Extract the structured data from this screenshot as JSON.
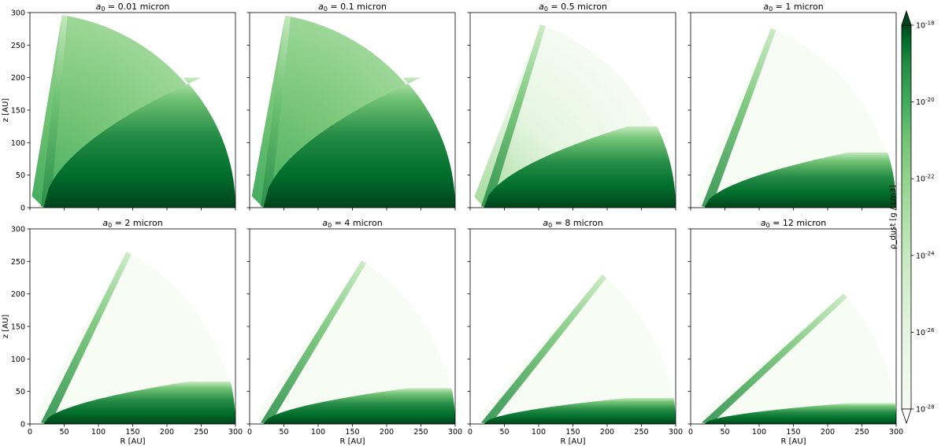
{
  "figure": {
    "colorbar": {
      "label": "ρ_dust [g / cm3]",
      "ticks": [
        "10^-18",
        "10^-20",
        "10^-22",
        "10^-24",
        "10^-26",
        "10^-28"
      ],
      "tick_exponents": [
        -18,
        -20,
        -22,
        -24,
        -26,
        -28
      ],
      "range_log10": [
        -28,
        -18
      ],
      "extend": "both",
      "colormap": "Greens",
      "color_light": "#f7fcf5",
      "color_dark": "#00441b"
    }
  },
  "chart_data": [
    {
      "type": "heatmap",
      "title_prefix": "a",
      "title_sub": "0",
      "title_value": " = 0.01 micron",
      "xlabel": "",
      "ylabel": "z [AU]",
      "xlim": [
        0,
        300
      ],
      "ylim": [
        0,
        300
      ],
      "xticks": [
        "0",
        "50",
        "100",
        "150",
        "200",
        "250",
        "300"
      ],
      "yticks": [
        "0",
        "50",
        "100",
        "150",
        "200",
        "250",
        "300"
      ],
      "outer_radius_au": 300,
      "inner_edge_au": 20,
      "outflow_cone_angle_deg": 81,
      "disk_surface_height_au": 200,
      "disk_surface_at_r_au": 250,
      "cavity_density": "high",
      "disk_density_scale_au": 200
    },
    {
      "type": "heatmap",
      "title_prefix": "a",
      "title_sub": "0",
      "title_value": " = 0.1 micron",
      "xlabel": "",
      "ylabel": "",
      "xlim": [
        0,
        300
      ],
      "ylim": [
        0,
        300
      ],
      "xticks": [
        "0",
        "50",
        "100",
        "150",
        "200",
        "250",
        "300"
      ],
      "yticks": [
        "0",
        "50",
        "100",
        "150",
        "200",
        "250",
        "300"
      ],
      "outer_radius_au": 300,
      "inner_edge_au": 20,
      "outflow_cone_angle_deg": 80,
      "disk_surface_height_au": 200,
      "disk_surface_at_r_au": 250,
      "cavity_density": "high",
      "disk_density_scale_au": 170
    },
    {
      "type": "heatmap",
      "title_prefix": "a",
      "title_sub": "0",
      "title_value": " = 0.5 micron",
      "xlabel": "",
      "ylabel": "",
      "xlim": [
        0,
        300
      ],
      "ylim": [
        0,
        300
      ],
      "xticks": [
        "0",
        "50",
        "100",
        "150",
        "200",
        "250",
        "300"
      ],
      "yticks": [
        "0",
        "50",
        "100",
        "150",
        "200",
        "250",
        "300"
      ],
      "outer_radius_au": 300,
      "inner_edge_au": 20,
      "outflow_cone_angle_deg": 70,
      "disk_surface_height_au": 125,
      "disk_surface_at_r_au": 230,
      "cavity_density": "medium",
      "disk_density_scale_au": 55
    },
    {
      "type": "heatmap",
      "title_prefix": "a",
      "title_sub": "0",
      "title_value": " = 1 micron",
      "xlabel": "",
      "ylabel": "",
      "xlim": [
        0,
        300
      ],
      "ylim": [
        0,
        300
      ],
      "xticks": [
        "0",
        "50",
        "100",
        "150",
        "200",
        "250",
        "300"
      ],
      "yticks": [
        "0",
        "50",
        "100",
        "150",
        "200",
        "250",
        "300"
      ],
      "outer_radius_au": 300,
      "inner_edge_au": 20,
      "outflow_cone_angle_deg": 67,
      "disk_surface_height_au": 85,
      "disk_surface_at_r_au": 230,
      "cavity_density": "low",
      "disk_density_scale_au": 35
    },
    {
      "type": "heatmap",
      "title_prefix": "a",
      "title_sub": "0",
      "title_value": " = 2 micron",
      "xlabel": "R [AU]",
      "ylabel": "z [AU]",
      "xlim": [
        0,
        300
      ],
      "ylim": [
        0,
        300
      ],
      "xticks": [
        "0",
        "50",
        "100",
        "150",
        "200",
        "250",
        "300"
      ],
      "yticks": [
        "0",
        "50",
        "100",
        "150",
        "200",
        "250",
        "300"
      ],
      "outer_radius_au": 300,
      "inner_edge_au": 20,
      "outflow_cone_angle_deg": 62,
      "disk_surface_height_au": 65,
      "disk_surface_at_r_au": 230,
      "cavity_density": "low",
      "disk_density_scale_au": 28
    },
    {
      "type": "heatmap",
      "title_prefix": "a",
      "title_sub": "0",
      "title_value": " = 4 micron",
      "xlabel": "R [AU]",
      "ylabel": "",
      "xlim": [
        0,
        300
      ],
      "ylim": [
        0,
        300
      ],
      "xticks": [
        "0",
        "50",
        "100",
        "150",
        "200",
        "250",
        "300"
      ],
      "yticks": [
        "0",
        "50",
        "100",
        "150",
        "200",
        "250",
        "300"
      ],
      "outer_radius_au": 300,
      "inner_edge_au": 20,
      "outflow_cone_angle_deg": 57,
      "disk_surface_height_au": 55,
      "disk_surface_at_r_au": 230,
      "cavity_density": "low",
      "disk_density_scale_au": 24
    },
    {
      "type": "heatmap",
      "title_prefix": "a",
      "title_sub": "0",
      "title_value": " = 8 micron",
      "xlabel": "R [AU]",
      "ylabel": "",
      "xlim": [
        0,
        300
      ],
      "ylim": [
        0,
        300
      ],
      "xticks": [
        "0",
        "50",
        "100",
        "150",
        "200",
        "250",
        "300"
      ],
      "yticks": [
        "0",
        "50",
        "100",
        "150",
        "200",
        "250",
        "300"
      ],
      "outer_radius_au": 300,
      "inner_edge_au": 20,
      "outflow_cone_angle_deg": 50,
      "disk_surface_height_au": 40,
      "disk_surface_at_r_au": 230,
      "cavity_density": "low",
      "disk_density_scale_au": 20
    },
    {
      "type": "heatmap",
      "title_prefix": "a",
      "title_sub": "0",
      "title_value": " = 12 micron",
      "xlabel": "R [AU]",
      "ylabel": "",
      "xlim": [
        0,
        300
      ],
      "ylim": [
        0,
        300
      ],
      "xticks": [
        "0",
        "50",
        "100",
        "150",
        "200",
        "250",
        "300"
      ],
      "yticks": [
        "0",
        "50",
        "100",
        "150",
        "200",
        "250",
        "300"
      ],
      "outer_radius_au": 300,
      "inner_edge_au": 20,
      "outflow_cone_angle_deg": 42,
      "disk_surface_height_au": 32,
      "disk_surface_at_r_au": 230,
      "cavity_density": "low",
      "disk_density_scale_au": 18
    }
  ]
}
